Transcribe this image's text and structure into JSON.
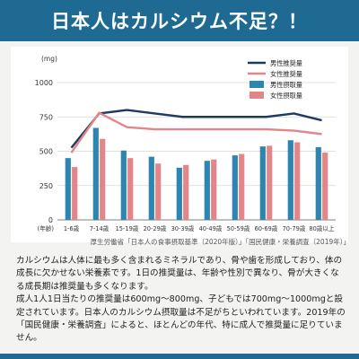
{
  "header": {
    "title": "日本人はカルシウム不足？！"
  },
  "chart_data": {
    "type": "bar",
    "unit_label": "(mg)",
    "x_unit_label": "(年齢)",
    "categories": [
      "1-6歳",
      "7-14歳",
      "15-19歳",
      "20-29歳",
      "30-39歳",
      "40-49歳",
      "50-59歳",
      "60-69歳",
      "70-79歳",
      "80歳以上"
    ],
    "ylim": [
      0,
      1000
    ],
    "yticks": [
      0,
      250,
      500,
      750,
      1000
    ],
    "grid": true,
    "legend_position": "top-right",
    "series": [
      {
        "name": "男性推奨量",
        "kind": "line",
        "color": "#1f3a5f",
        "values": [
          525,
          775,
          800,
          775,
          750,
          750,
          750,
          750,
          775,
          725
        ]
      },
      {
        "name": "女性推奨量",
        "kind": "line",
        "color": "#e3868a",
        "values": [
          490,
          780,
          675,
          660,
          660,
          660,
          660,
          660,
          650,
          625
        ]
      },
      {
        "name": "男性摂取量",
        "kind": "bar",
        "color": "#2e86b0",
        "values": [
          450,
          670,
          505,
          460,
          380,
          430,
          470,
          535,
          580,
          530
        ]
      },
      {
        "name": "女性摂取量",
        "kind": "bar",
        "color": "#e3868a",
        "values": [
          385,
          590,
          450,
          410,
          400,
          440,
          480,
          540,
          565,
          490
        ]
      }
    ]
  },
  "source": "厚生労働省「日本人の食事摂取基準（2020年版）」「国民健康・栄養調査（2019年）」",
  "body": {
    "paragraphs": [
      "カルシウムは人体に最も多く含まれるミネラルであり、骨や歯を形成しており、体の成長に欠かせない栄養素です。1日の推奨量は、年齢や性別で異なり、骨が大きくなる成長期は推奨量も多くなります。",
      "成人1人1日当たりの推奨量は600mg～800mg、子どもでは700mg～1000mgと設定されています。日本人のカルシウム摂取量は不足がちといわれています。2019年の「国民健康・栄養調査」によると、ほとんどの年代、特に成人で推奨量に足りていません。"
    ]
  }
}
